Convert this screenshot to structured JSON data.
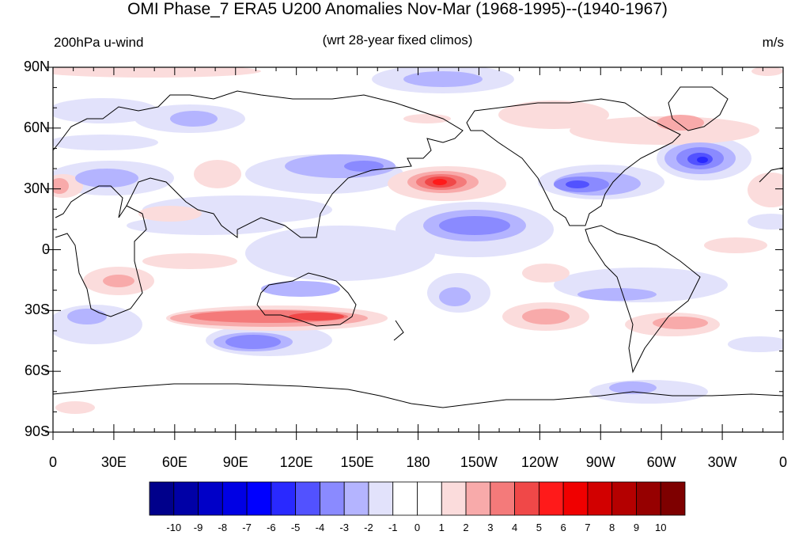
{
  "header": {
    "title": "OMI Phase_7 ERA5 U200 Anomalies Nov-Mar (1968-1995)--(1940-1967)",
    "left_label": "200hPa u-wind",
    "center_label": "(wrt 28-year fixed climos)",
    "right_label": "m/s"
  },
  "map": {
    "lat_labels": [
      "90N",
      "60N",
      "30N",
      "0",
      "30S",
      "60S",
      "90S"
    ],
    "lon_labels": [
      "0",
      "30E",
      "60E",
      "90E",
      "120E",
      "150E",
      "180",
      "150W",
      "120W",
      "90W",
      "60W",
      "30W",
      "0"
    ]
  },
  "colorbar": {
    "labels": [
      "-10",
      "-9",
      "-8",
      "-7",
      "-6",
      "-5",
      "-4",
      "-3",
      "-2",
      "-1",
      "0",
      "1",
      "2",
      "3",
      "4",
      "5",
      "6",
      "7",
      "8",
      "9",
      "10"
    ],
    "colors": [
      "#00008b",
      "#0000a6",
      "#0000c8",
      "#0000e4",
      "#0000ff",
      "#2929ff",
      "#5252ff",
      "#8a8aff",
      "#b4b4ff",
      "#e2e2fb",
      "#ffffff",
      "#ffffff",
      "#fbdcdc",
      "#f8aaaa",
      "#f47a7a",
      "#f04848",
      "#ff1a1a",
      "#f00000",
      "#d20000",
      "#b40000",
      "#960000",
      "#7e0000"
    ]
  }
}
